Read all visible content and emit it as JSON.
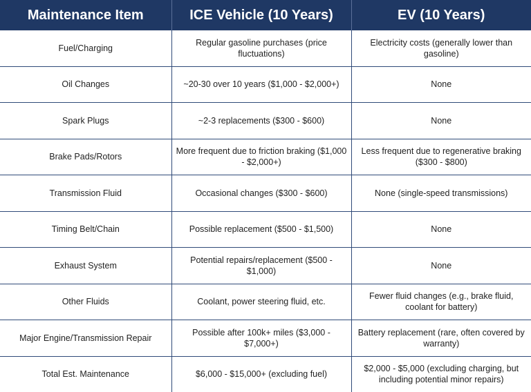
{
  "table": {
    "headers": [
      "Maintenance Item",
      "ICE Vehicle (10 Years)",
      "EV (10 Years)"
    ],
    "rows": [
      [
        "Fuel/Charging",
        "Regular gasoline purchases (price fluctuations)",
        "Electricity costs (generally lower than gasoline)"
      ],
      [
        "Oil Changes",
        "~20-30 over 10 years ($1,000 - $2,000+)",
        "None"
      ],
      [
        "Spark Plugs",
        "~2-3 replacements ($300 - $600)",
        "None"
      ],
      [
        "Brake Pads/Rotors",
        "More frequent due to friction braking ($1,000 - $2,000+)",
        "Less frequent due to regenerative braking ($300 - $800)"
      ],
      [
        "Transmission Fluid",
        "Occasional changes ($300 - $600)",
        "None (single-speed transmissions)"
      ],
      [
        "Timing Belt/Chain",
        "Possible replacement ($500 - $1,500)",
        "None"
      ],
      [
        "Exhaust System",
        "Potential repairs/replacement ($500 - $1,000)",
        "None"
      ],
      [
        "Other Fluids",
        "Coolant, power steering fluid, etc.",
        "Fewer fluid changes (e.g., brake fluid, coolant for battery)"
      ],
      [
        "Major Engine/Transmission Repair",
        "Possible after 100k+ miles ($3,000 - $7,000+)",
        "Battery replacement (rare, often covered by warranty)"
      ],
      [
        "Total Est. Maintenance",
        "$6,000 - $15,000+ (excluding fuel)",
        "$2,000 - $5,000 (excluding charging, but including potential minor repairs)"
      ]
    ]
  }
}
